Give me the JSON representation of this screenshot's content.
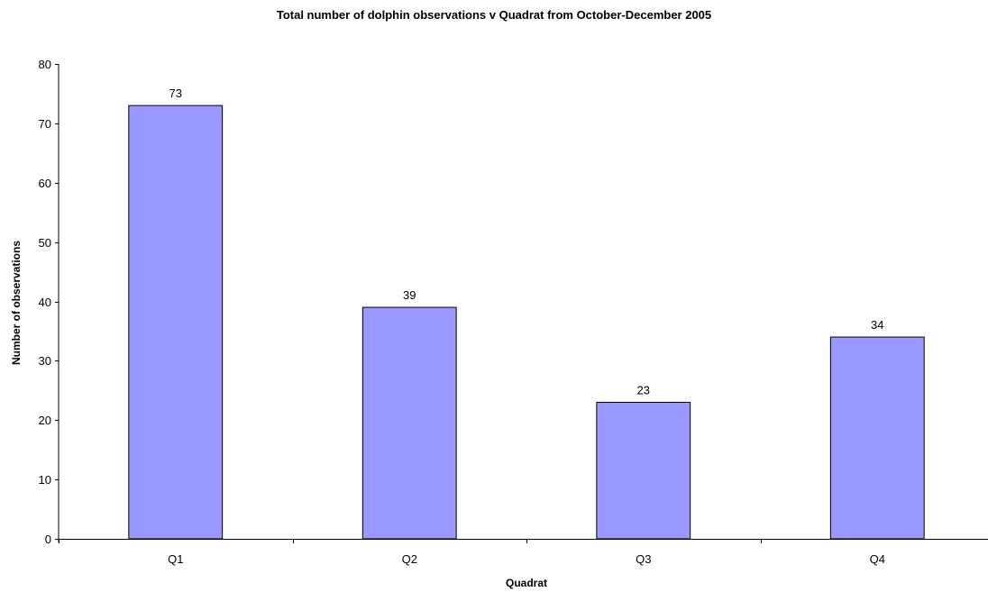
{
  "chart_data": {
    "type": "bar",
    "title": "Total number of dolphin observations v Quadrat  from October-December 2005",
    "xlabel": "Quadrat",
    "ylabel": "Number of observations",
    "categories": [
      "Q1",
      "Q2",
      "Q3",
      "Q4"
    ],
    "values": [
      73,
      39,
      23,
      34
    ],
    "data_labels": [
      "73",
      "39",
      "23",
      "34"
    ],
    "ylim": [
      0,
      80
    ],
    "yticks": [
      0,
      10,
      20,
      30,
      40,
      50,
      60,
      70,
      80
    ],
    "ytick_labels": [
      "0",
      "10",
      "20",
      "30",
      "40",
      "50",
      "60",
      "70",
      "80"
    ],
    "grid": false,
    "legend": "none",
    "bar_color": "#9999ff",
    "bar_edge_color": "#000000"
  }
}
